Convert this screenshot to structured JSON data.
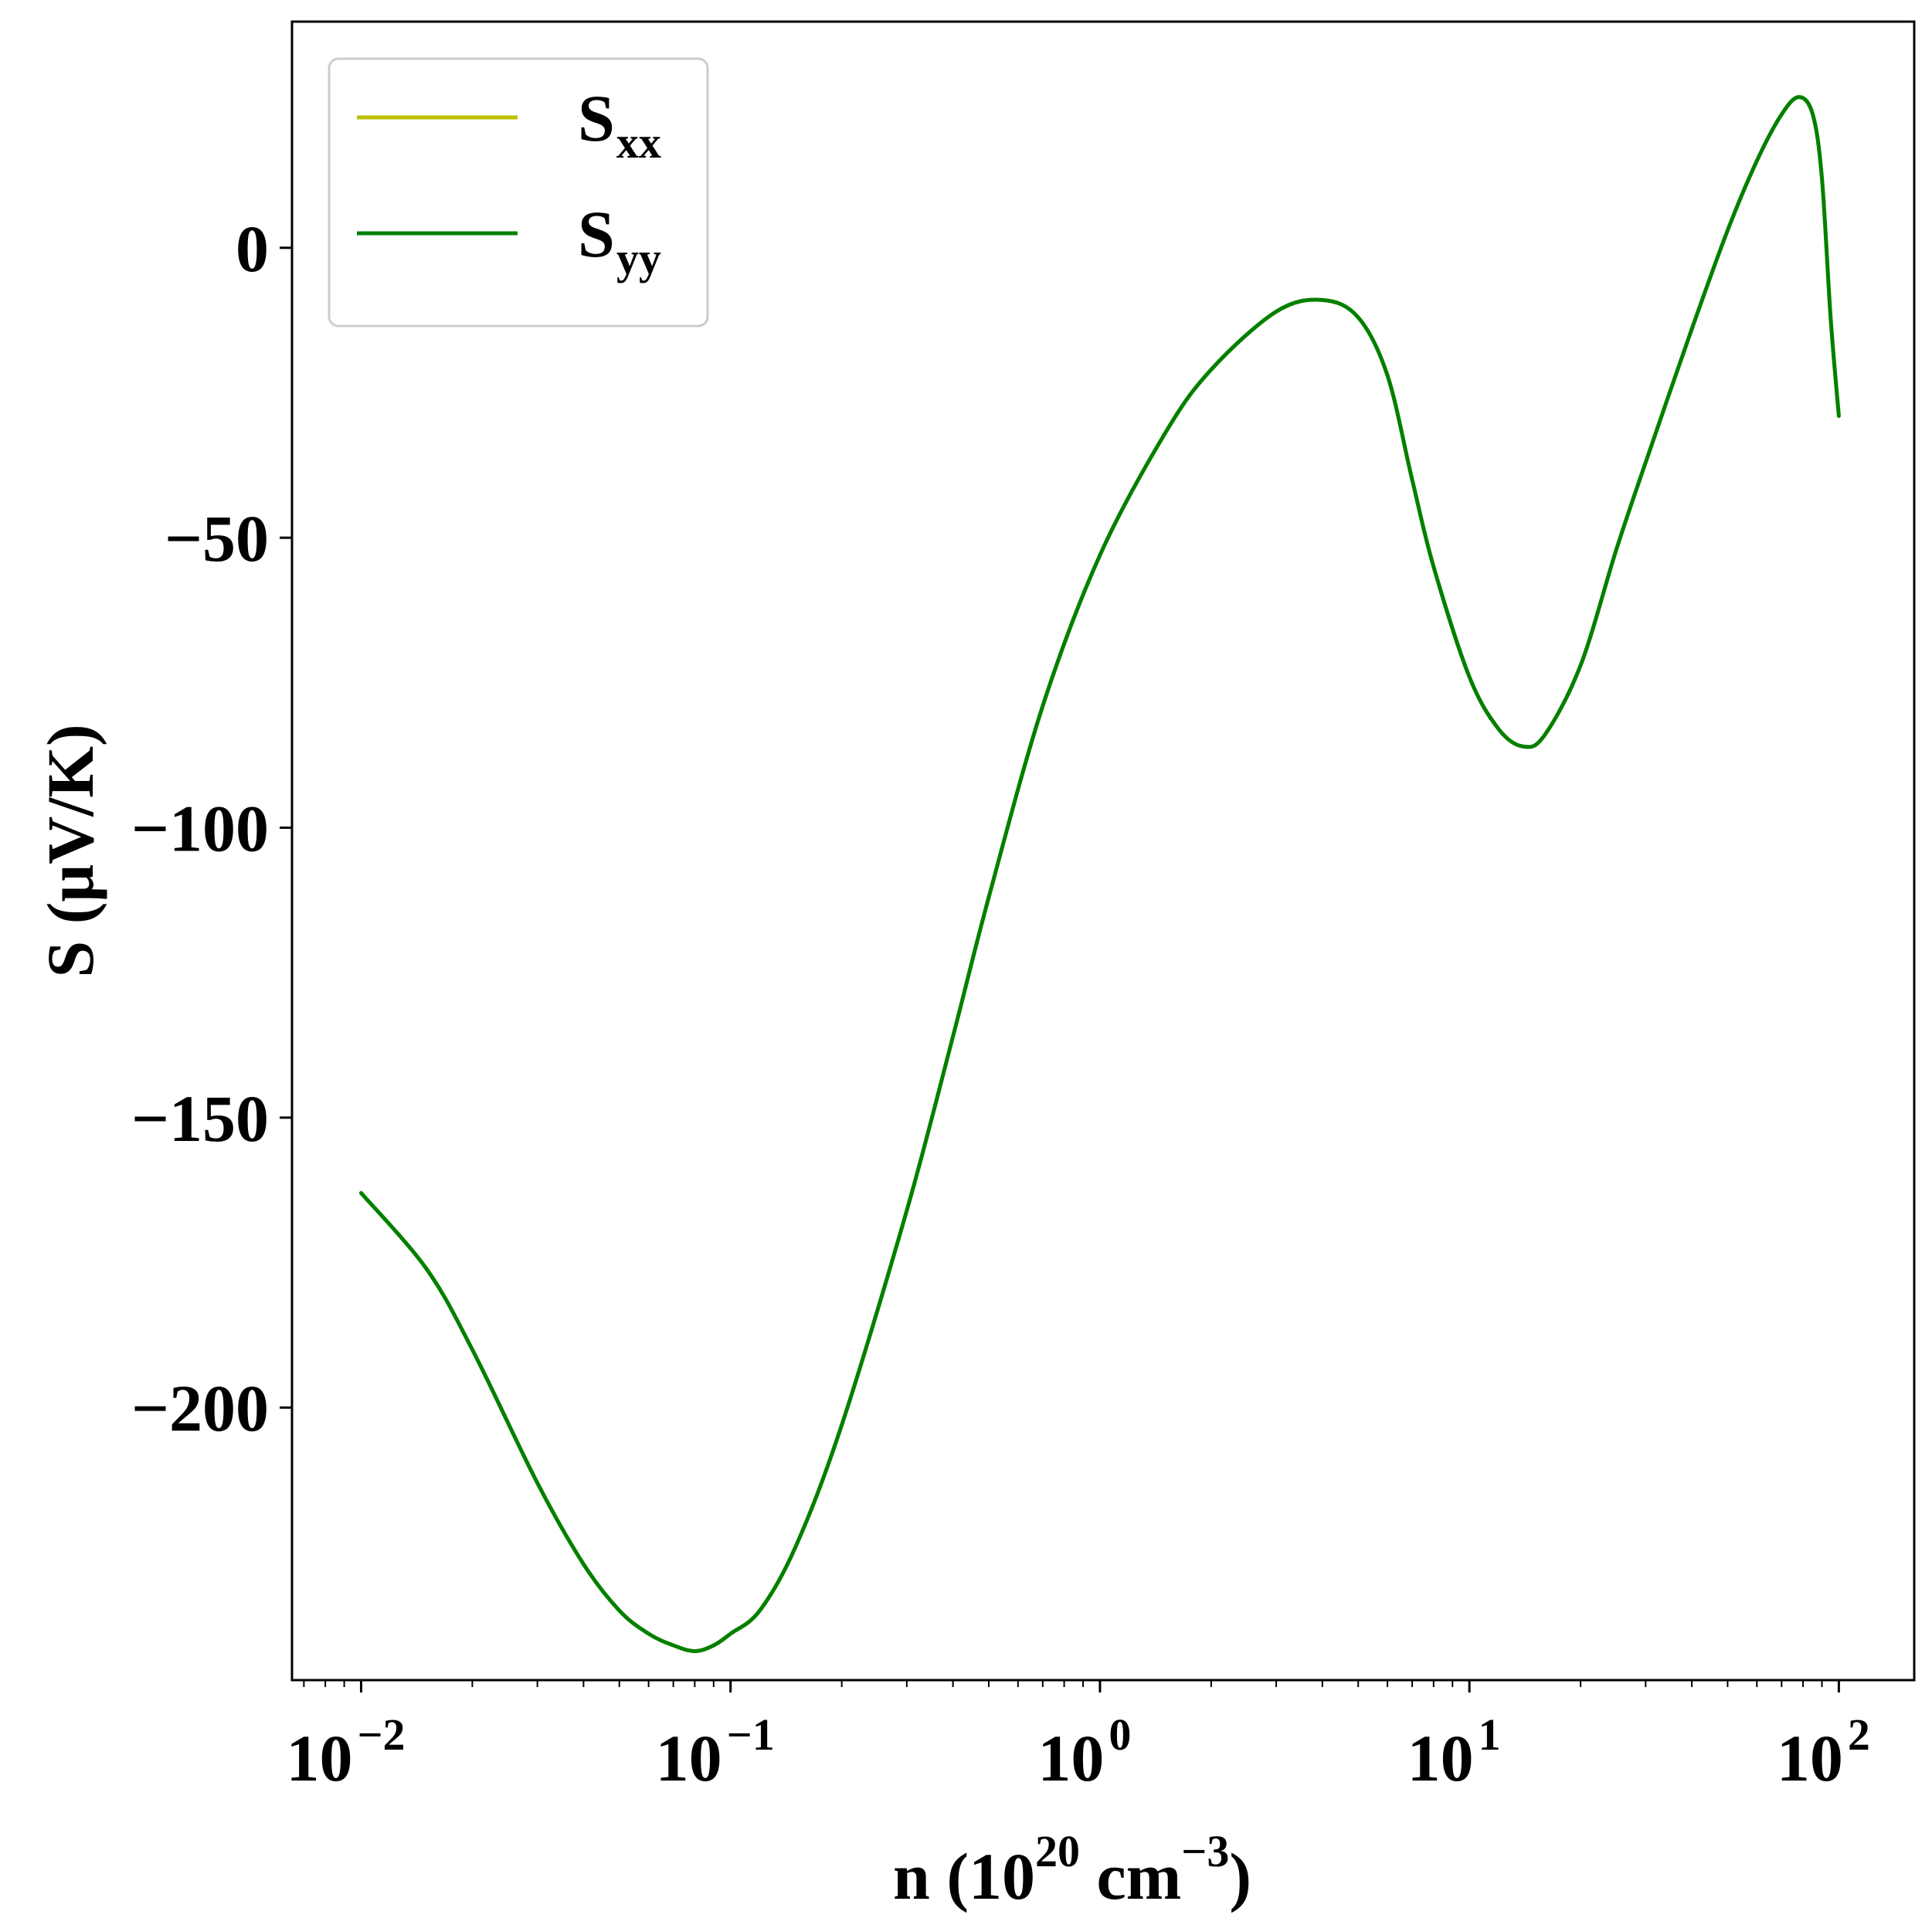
{
  "chart_data": {
    "type": "line",
    "xscale": "log",
    "xlim": [
      0.0065,
      160
    ],
    "ylim": [
      -247,
      39
    ],
    "xlabel": {
      "base": "n (10",
      "sup1": "20",
      "mid": " cm",
      "sup2": "−3",
      "end": ")"
    },
    "ylabel": "S (μV/K)",
    "xticks": [
      {
        "value": 0.01,
        "base": "10",
        "exp": "−2"
      },
      {
        "value": 0.1,
        "base": "10",
        "exp": "−1"
      },
      {
        "value": 1,
        "base": "10",
        "exp": "0"
      },
      {
        "value": 10,
        "base": "10",
        "exp": "1"
      },
      {
        "value": 100,
        "base": "10",
        "exp": "2"
      }
    ],
    "yticks": [
      {
        "value": 0,
        "label": "0"
      },
      {
        "value": -50,
        "label": "−50"
      },
      {
        "value": -100,
        "label": "−100"
      },
      {
        "value": -150,
        "label": "−150"
      },
      {
        "value": -200,
        "label": "−200"
      }
    ],
    "grid": false,
    "legend_position": "top-left",
    "series": [
      {
        "name": {
          "base": "S",
          "sub": "xx"
        },
        "color": "#bfbf00",
        "x": [
          0.01,
          0.015,
          0.02,
          0.03,
          0.04,
          0.05,
          0.06,
          0.07,
          0.08,
          0.09,
          0.1,
          0.12,
          0.15,
          0.2,
          0.3,
          0.4,
          0.5,
          0.7,
          1.0,
          1.5,
          2.0,
          3.0,
          4.0,
          5.0,
          6.0,
          7.0,
          8.0,
          10.0,
          12.0,
          14.0,
          16.0,
          20.0,
          25.0,
          30.0,
          40.0,
          50.0,
          60.0,
          70.0,
          78.0,
          85.0,
          90.0,
          95.0,
          100.0
        ],
        "y": [
          -163,
          -176,
          -190,
          -213,
          -227,
          -235,
          -239,
          -241,
          -242,
          -241,
          -239,
          -235,
          -224,
          -203,
          -166,
          -136,
          -112,
          -79,
          -53,
          -32,
          -21,
          -11,
          -9,
          -12,
          -22,
          -40,
          -55,
          -74,
          -83,
          -86,
          -84,
          -72,
          -52,
          -37,
          -14,
          3,
          15,
          23,
          26,
          23,
          12,
          -12,
          -29
        ]
      },
      {
        "name": {
          "base": "S",
          "sub": "yy"
        },
        "color": "#008000",
        "x": [
          0.01,
          0.015,
          0.02,
          0.03,
          0.04,
          0.05,
          0.06,
          0.07,
          0.08,
          0.09,
          0.1,
          0.12,
          0.15,
          0.2,
          0.3,
          0.4,
          0.5,
          0.7,
          1.0,
          1.5,
          2.0,
          3.0,
          4.0,
          5.0,
          6.0,
          7.0,
          8.0,
          10.0,
          12.0,
          14.0,
          16.0,
          20.0,
          25.0,
          30.0,
          40.0,
          50.0,
          60.0,
          70.0,
          78.0,
          85.0,
          90.0,
          95.0,
          100.0
        ],
        "y": [
          -163,
          -176,
          -190,
          -213,
          -227,
          -235,
          -239,
          -241,
          -242,
          -241,
          -239,
          -235,
          -224,
          -203,
          -166,
          -136,
          -112,
          -79,
          -53,
          -32,
          -21,
          -11,
          -9,
          -12,
          -22,
          -40,
          -55,
          -74,
          -83,
          -86,
          -84,
          -72,
          -52,
          -37,
          -14,
          3,
          15,
          23,
          26,
          23,
          12,
          -12,
          -29
        ]
      }
    ]
  }
}
